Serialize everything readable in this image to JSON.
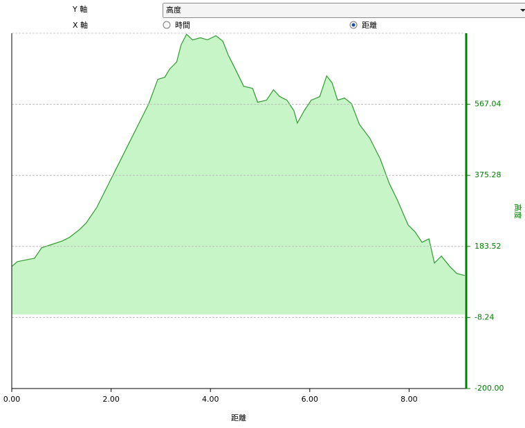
{
  "controls": {
    "y_axis_label": "Y 軸",
    "y_axis_selected": "高度",
    "x_axis_label": "X 軸",
    "x_options": [
      "時間",
      "距離"
    ],
    "x_selected_index": 1
  },
  "chart_data": {
    "type": "area",
    "xlabel": "距離",
    "ylabel": "高度",
    "x": [
      0,
      0.11,
      0.32,
      0.46,
      0.6,
      0.81,
      1.02,
      1.16,
      1.36,
      1.5,
      1.71,
      1.92,
      2.13,
      2.34,
      2.55,
      2.76,
      2.94,
      3.08,
      3.18,
      3.32,
      3.41,
      3.52,
      3.64,
      3.8,
      3.94,
      4.11,
      4.25,
      4.36,
      4.5,
      4.67,
      4.85,
      4.95,
      5.13,
      5.27,
      5.4,
      5.54,
      5.68,
      5.75,
      5.89,
      6.03,
      6.2,
      6.34,
      6.45,
      6.56,
      6.7,
      6.84,
      7.0,
      7.21,
      7.42,
      7.6,
      7.77,
      7.98,
      8.12,
      8.26,
      8.4,
      8.51,
      8.65,
      8.82,
      8.96,
      9.12
    ],
    "series": [
      {
        "color": "#2f9a2f",
        "fill": "#c8f5c8",
        "values": [
          129.3,
          142.4,
          148,
          151.7,
          179.8,
          189,
          198.5,
          207.8,
          228.4,
          247,
          288.3,
          344.4,
          400.5,
          456.6,
          512.8,
          568.9,
          634.4,
          640,
          662.4,
          681.1,
          727.9,
          756,
          741,
          746.6,
          741,
          752.2,
          737.3,
          699.8,
          662.4,
          615.7,
          610,
          572.6,
          578.3,
          606.3,
          587.6,
          578.3,
          550.2,
          516.5,
          550.2,
          578.3,
          587.6,
          643.7,
          625,
          578.3,
          583.9,
          568.9,
          512.8,
          475.4,
          419.3,
          353.8,
          307,
          241.5,
          222.8,
          194.7,
          204,
          138.6,
          157.3,
          129.3,
          110.6,
          105
        ]
      }
    ],
    "xlim": [
      0,
      9.15
    ],
    "ylim": [
      -200,
      758.8
    ],
    "xticks": [
      {
        "value": 0,
        "label": "0.00"
      },
      {
        "value": 2,
        "label": "2.00"
      },
      {
        "value": 4,
        "label": "4.00"
      },
      {
        "value": 6,
        "label": "6.00"
      },
      {
        "value": 8,
        "label": "8.00"
      }
    ],
    "yticks": [
      {
        "value": -200,
        "label": "-200.00"
      },
      -8.24,
      183.52,
      375.28,
      567.04
    ],
    "axis_color": "#008000",
    "grid": true
  }
}
